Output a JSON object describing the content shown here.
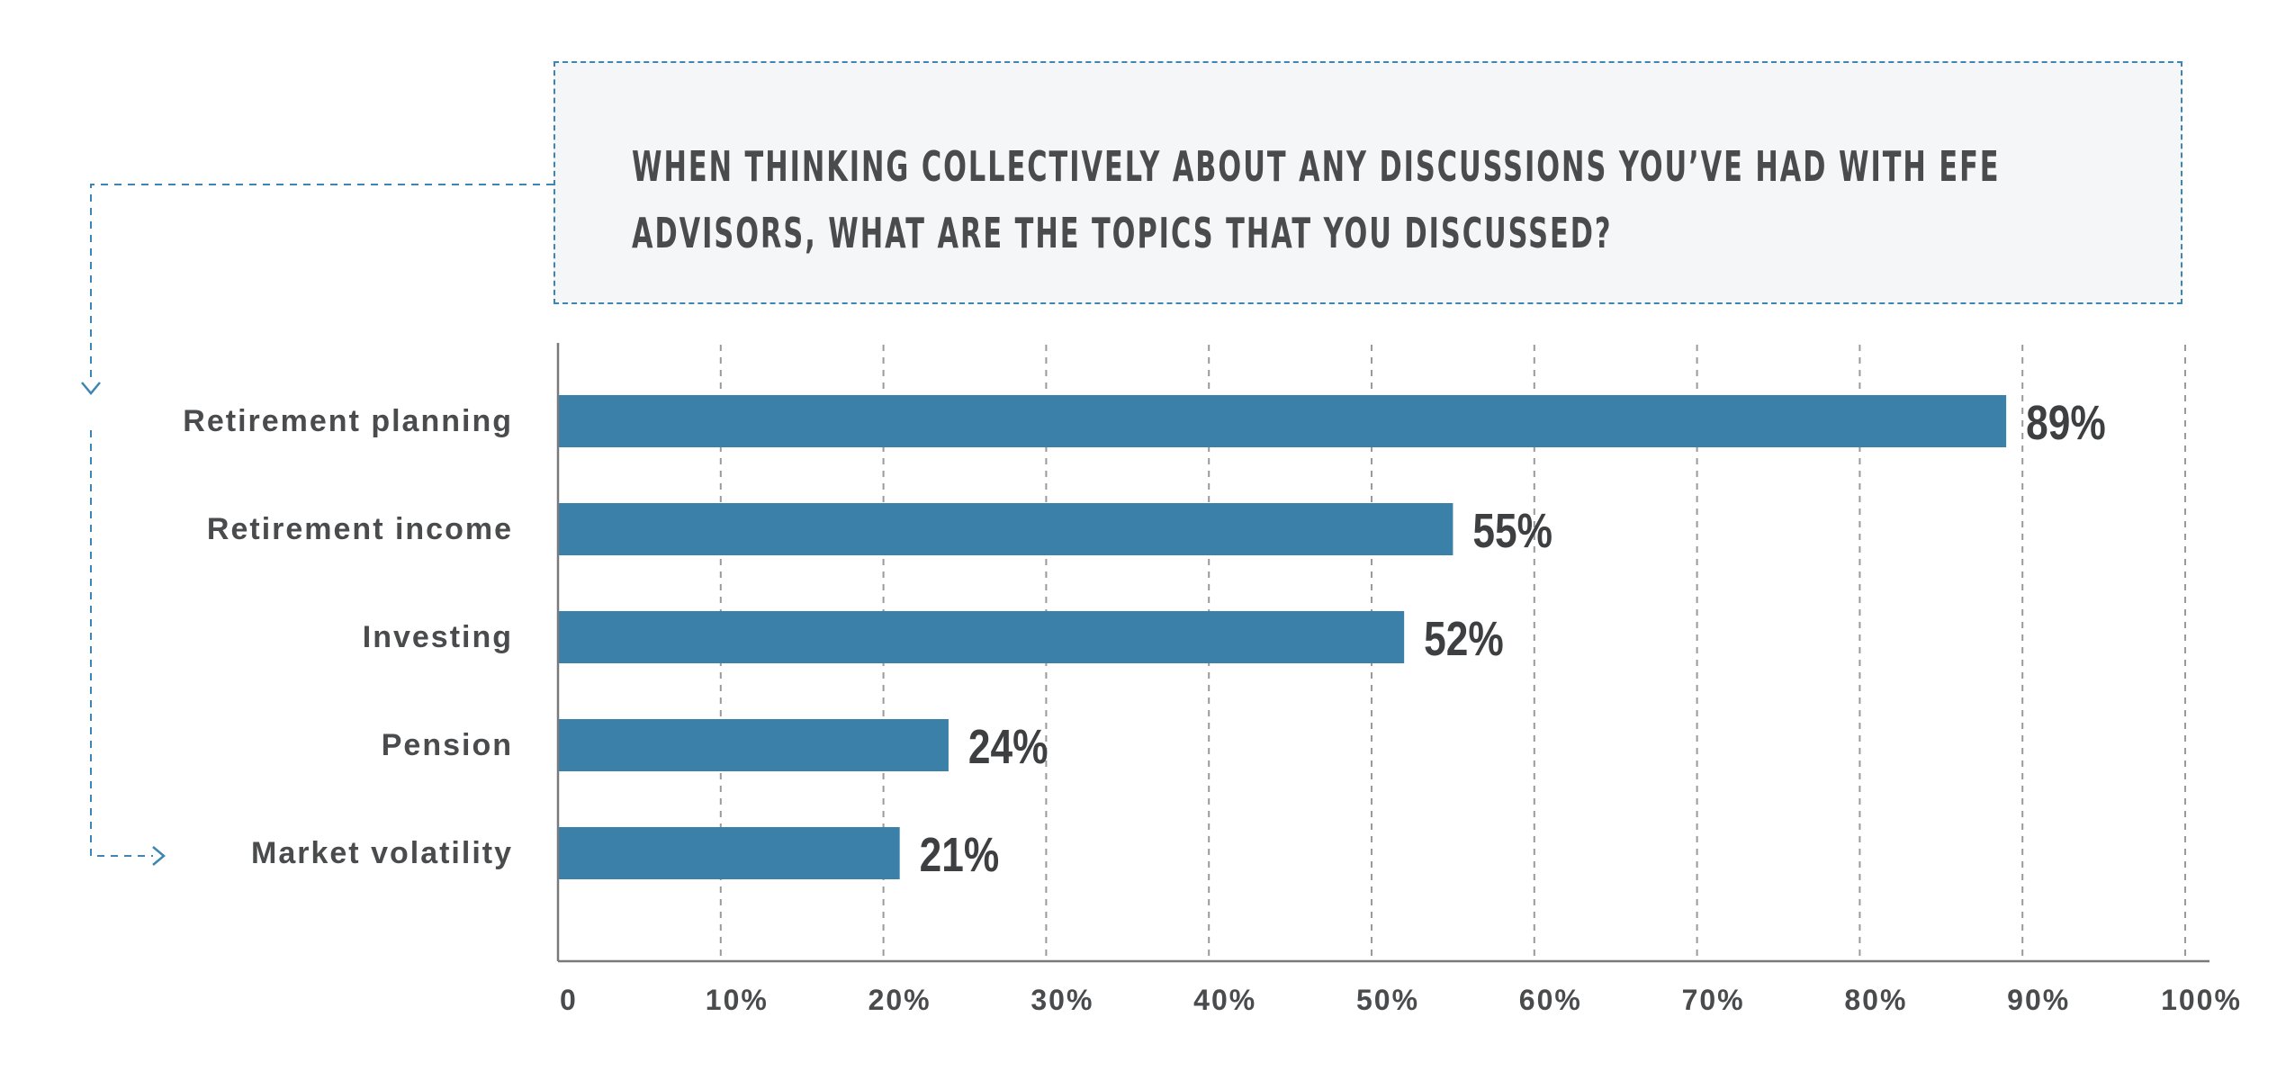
{
  "chart_data": {
    "type": "bar",
    "orientation": "horizontal",
    "title": "WHEN THINKING COLLECTIVELY ABOUT ANY DISCUSSIONS YOU’VE HAD WITH EFE ADVISORS, WHAT ARE THE TOPICS THAT YOU DISCUSSED?",
    "categories": [
      "Retirement planning",
      "Retirement income",
      "Investing",
      "Pension",
      "Market volatility"
    ],
    "values": [
      89,
      55,
      52,
      24,
      21
    ],
    "data_labels": [
      "89%",
      "55%",
      "52%",
      "24%",
      "21%"
    ],
    "xlim": [
      0,
      100
    ],
    "x_ticks": [
      0,
      10,
      20,
      30,
      40,
      50,
      60,
      70,
      80,
      90,
      100
    ],
    "x_tick_labels": [
      "0",
      "10%",
      "20%",
      "30%",
      "40%",
      "50%",
      "60%",
      "70%",
      "80%",
      "90%",
      "100%"
    ],
    "grid": "vertical dashed",
    "legend": "none",
    "colors": {
      "bar": "#3a80a8",
      "text": "#4a4b4d",
      "grid": "#9a9a9a",
      "accent": "#3d86b3",
      "title_bg": "#f5f6f8"
    }
  }
}
